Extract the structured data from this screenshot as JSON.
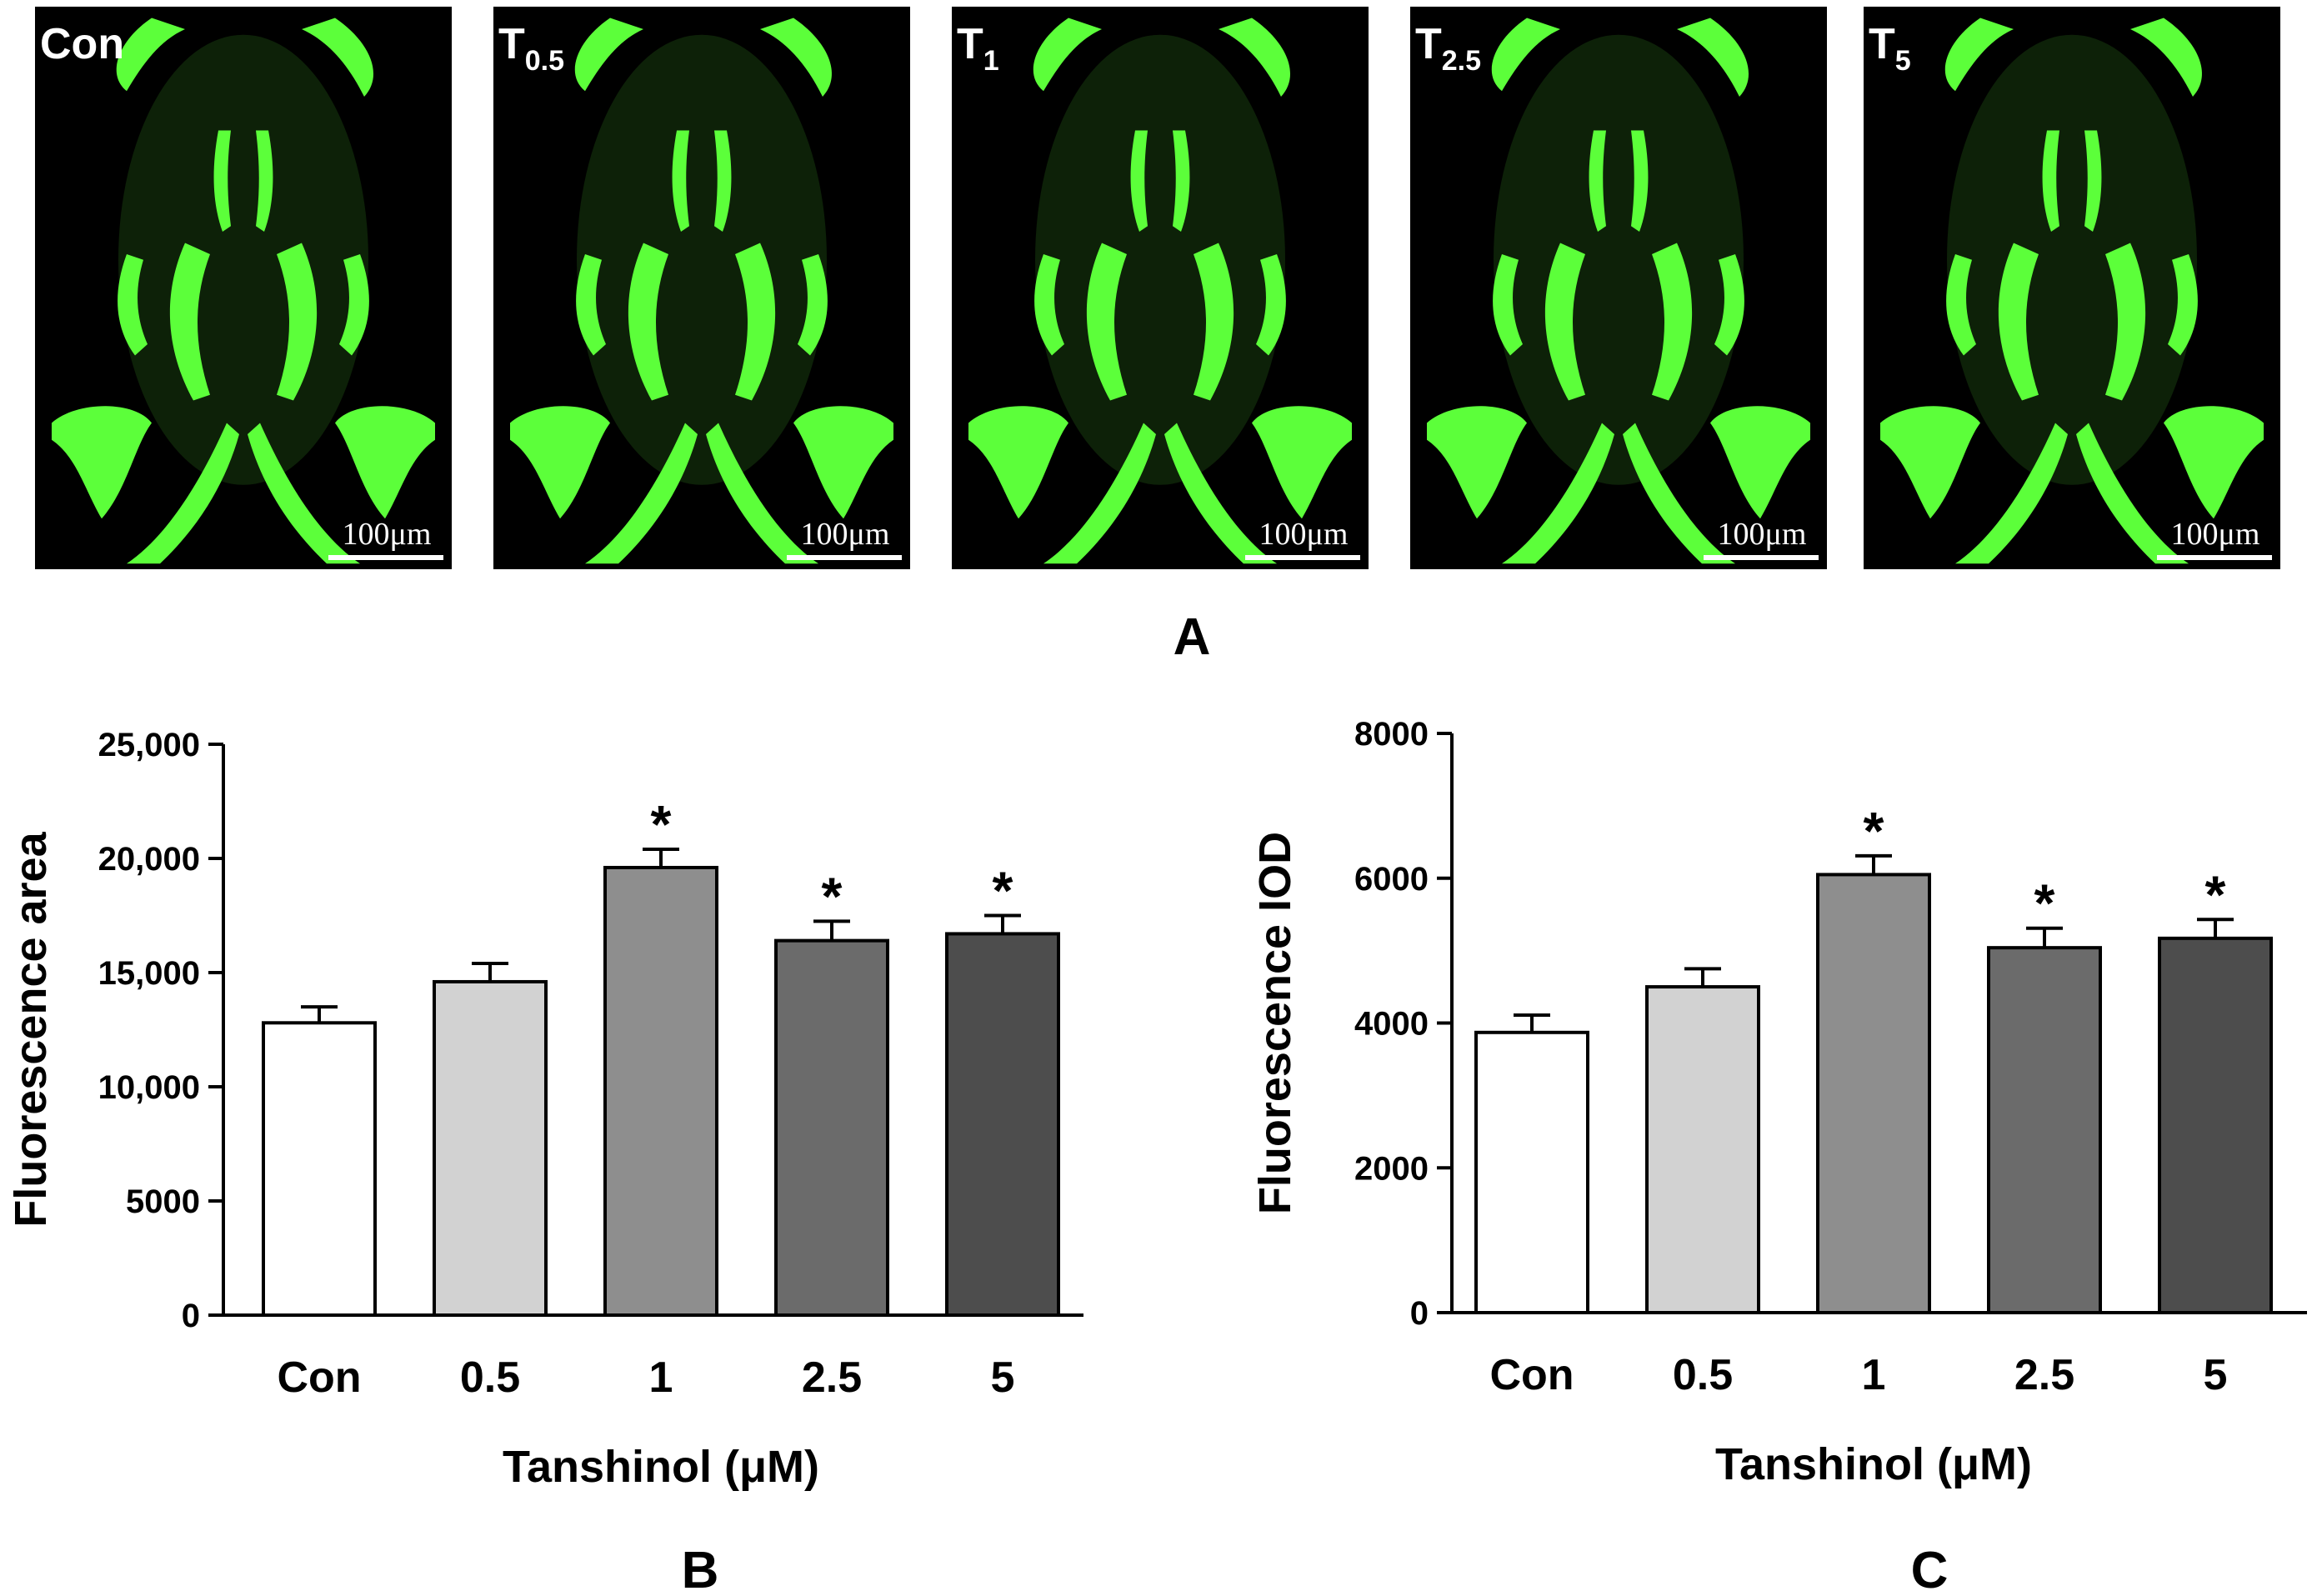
{
  "figure": {
    "panel_labels": {
      "a": "A",
      "b": "B",
      "c": "C"
    },
    "micrographs": [
      {
        "label": "Con",
        "subscript": "",
        "scale_bar": "100μm"
      },
      {
        "label": "T",
        "subscript": "0.5",
        "scale_bar": "100μm"
      },
      {
        "label": "T",
        "subscript": "1",
        "scale_bar": "100μm"
      },
      {
        "label": "T",
        "subscript": "2.5",
        "scale_bar": "100μm"
      },
      {
        "label": "T",
        "subscript": "5",
        "scale_bar": "100μm"
      }
    ],
    "colors": {
      "fluorescence": "#5cff3a",
      "background": "#000000"
    }
  },
  "chart_data": [
    {
      "type": "bar",
      "panel": "B",
      "categories": [
        "Con",
        "0.5",
        "1",
        "2.5",
        "5"
      ],
      "values": [
        12800,
        14600,
        19600,
        16400,
        16700
      ],
      "errors": [
        700,
        800,
        800,
        850,
        800
      ],
      "significant": [
        "",
        "",
        "*",
        "*",
        "*"
      ],
      "bar_colors": [
        "#ffffff",
        "#d2d2d2",
        "#8e8e8e",
        "#6b6b6b",
        "#4d4d4d"
      ],
      "xlabel": "Tanshinol (μM)",
      "ylabel": "Fluorescence area",
      "ylim": [
        0,
        25000
      ],
      "yticks": [
        0,
        5000,
        10000,
        15000,
        20000,
        25000
      ],
      "ytick_labels": [
        "0",
        "5000",
        "10,000",
        "15,000",
        "20,000",
        "25,000"
      ],
      "grid": false
    },
    {
      "type": "bar",
      "panel": "C",
      "categories": [
        "Con",
        "0.5",
        "1",
        "2.5",
        "5"
      ],
      "values": [
        3870,
        4500,
        6050,
        5040,
        5170
      ],
      "errors": [
        240,
        250,
        260,
        270,
        260
      ],
      "significant": [
        "",
        "",
        "*",
        "*",
        "*"
      ],
      "bar_colors": [
        "#ffffff",
        "#d2d2d2",
        "#8e8e8e",
        "#6b6b6b",
        "#4d4d4d"
      ],
      "xlabel": "Tanshinol (μM)",
      "ylabel": "Fluorescence IOD",
      "ylim": [
        0,
        8000
      ],
      "yticks": [
        0,
        2000,
        4000,
        6000,
        8000
      ],
      "ytick_labels": [
        "0",
        "2000",
        "4000",
        "6000",
        "8000"
      ],
      "grid": false
    }
  ]
}
